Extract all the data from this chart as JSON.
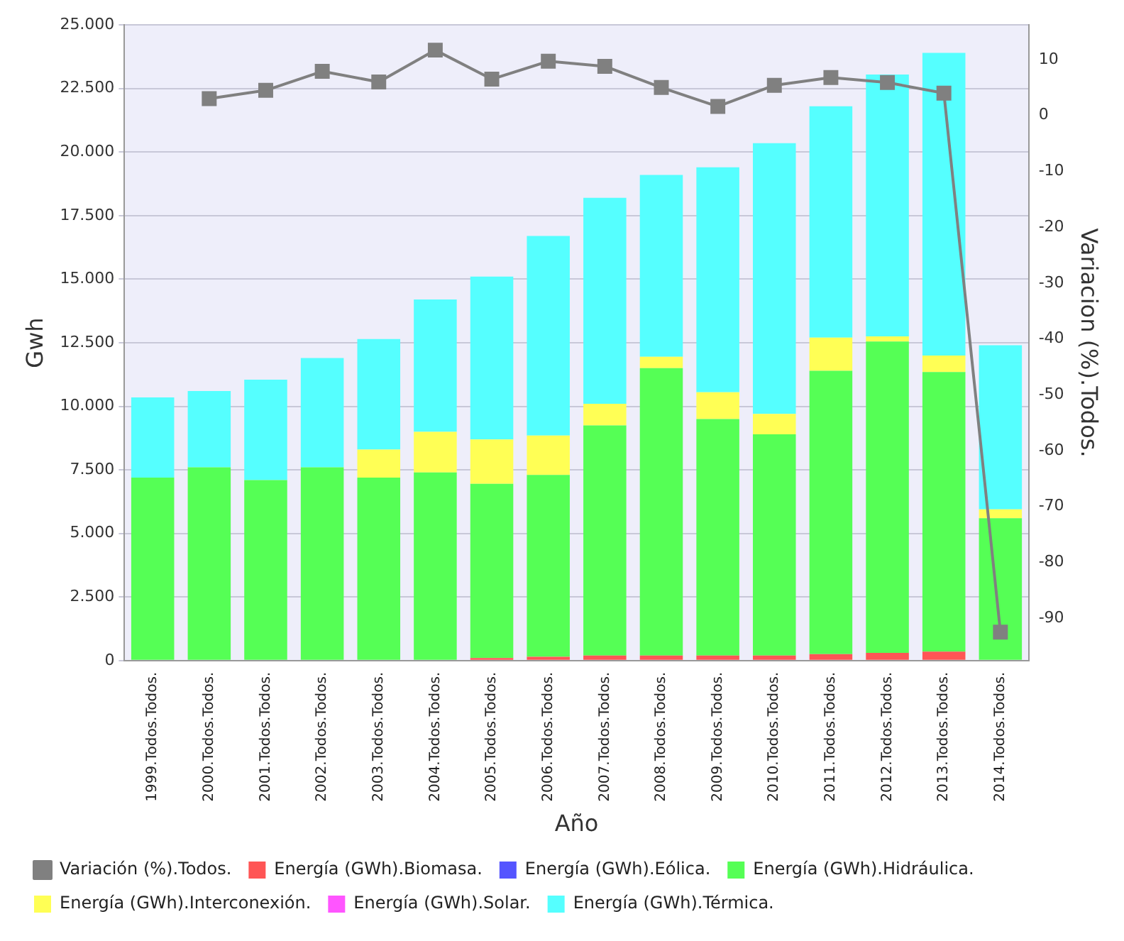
{
  "chart_data": {
    "type": "bar",
    "stacked": true,
    "xlabel": "Año",
    "ylabel": "Gwh",
    "y2label": "Variacion (%).Todos.",
    "categories": [
      "1999.Todos.Todos.",
      "2000.Todos.Todos.",
      "2001.Todos.Todos.",
      "2002.Todos.Todos.",
      "2003.Todos.Todos.",
      "2004.Todos.Todos.",
      "2005.Todos.Todos.",
      "2006.Todos.Todos.",
      "2007.Todos.Todos.",
      "2008.Todos.Todos.",
      "2009.Todos.Todos.",
      "2010.Todos.Todos.",
      "2011.Todos.Todos.",
      "2012.Todos.Todos.",
      "2013.Todos.Todos.",
      "2014.Todos.Todos."
    ],
    "series": [
      {
        "name": "Energía (GWh).Biomasa.",
        "color": "#ff5555",
        "values": [
          0,
          0,
          0,
          0,
          0,
          0,
          100,
          150,
          200,
          200,
          200,
          200,
          250,
          300,
          350,
          0
        ]
      },
      {
        "name": "Energía (GWh).Eólica.",
        "color": "#5555ff",
        "values": [
          0,
          0,
          0,
          0,
          0,
          0,
          0,
          0,
          0,
          0,
          0,
          0,
          0,
          0,
          0,
          0
        ]
      },
      {
        "name": "Energía (GWh).Hidráulica.",
        "color": "#55ff55",
        "values": [
          7200,
          7600,
          7100,
          7600,
          7200,
          7400,
          6850,
          7150,
          9050,
          11300,
          9300,
          8700,
          11150,
          12250,
          11000,
          5600
        ]
      },
      {
        "name": "Energía (GWh).Interconexión.",
        "color": "#ffff55",
        "values": [
          0,
          0,
          0,
          0,
          1100,
          1600,
          1750,
          1550,
          850,
          450,
          1050,
          800,
          1300,
          200,
          650,
          350
        ]
      },
      {
        "name": "Energía (GWh).Solar.",
        "color": "#ff55ff",
        "values": [
          0,
          0,
          0,
          0,
          0,
          0,
          0,
          0,
          0,
          0,
          0,
          0,
          0,
          0,
          0,
          0
        ]
      },
      {
        "name": "Energía (GWh).Térmica.",
        "color": "#55ffff",
        "values": [
          3150,
          3000,
          3950,
          4300,
          4350,
          5200,
          6400,
          7850,
          8100,
          7150,
          8850,
          10650,
          9100,
          10300,
          11900,
          6450
        ]
      },
      {
        "name": "Variación (%).Todos.",
        "type": "line",
        "axis": "y2",
        "marker": "square",
        "color": "#808080",
        "values": [
          null,
          3.0,
          4.5,
          7.9,
          6.0,
          11.7,
          6.5,
          9.7,
          8.8,
          5.0,
          1.6,
          5.4,
          6.8,
          5.9,
          4.0,
          -92.5
        ]
      }
    ],
    "ylim": [
      0,
      25000
    ],
    "yticks": [
      0,
      {
        "value": 2500,
        "label": "2.500"
      },
      {
        "value": 5000,
        "label": "5.000"
      },
      {
        "value": 7500,
        "label": "7.500"
      },
      {
        "value": 10000,
        "label": "10.000"
      },
      {
        "value": 12500,
        "label": "12.500"
      },
      {
        "value": 15000,
        "label": "15.000"
      },
      {
        "value": 17500,
        "label": "17.500"
      },
      {
        "value": 20000,
        "label": "20.000"
      },
      {
        "value": 22500,
        "label": "22.500"
      },
      {
        "value": 25000,
        "label": "25.000"
      }
    ],
    "y2lim": [
      -97.6,
      16.2
    ],
    "y2ticks": [
      -90,
      -80,
      -70,
      -60,
      -50,
      -40,
      -30,
      -20,
      -10,
      0,
      10
    ],
    "grid": "y",
    "legend": "bottom"
  }
}
